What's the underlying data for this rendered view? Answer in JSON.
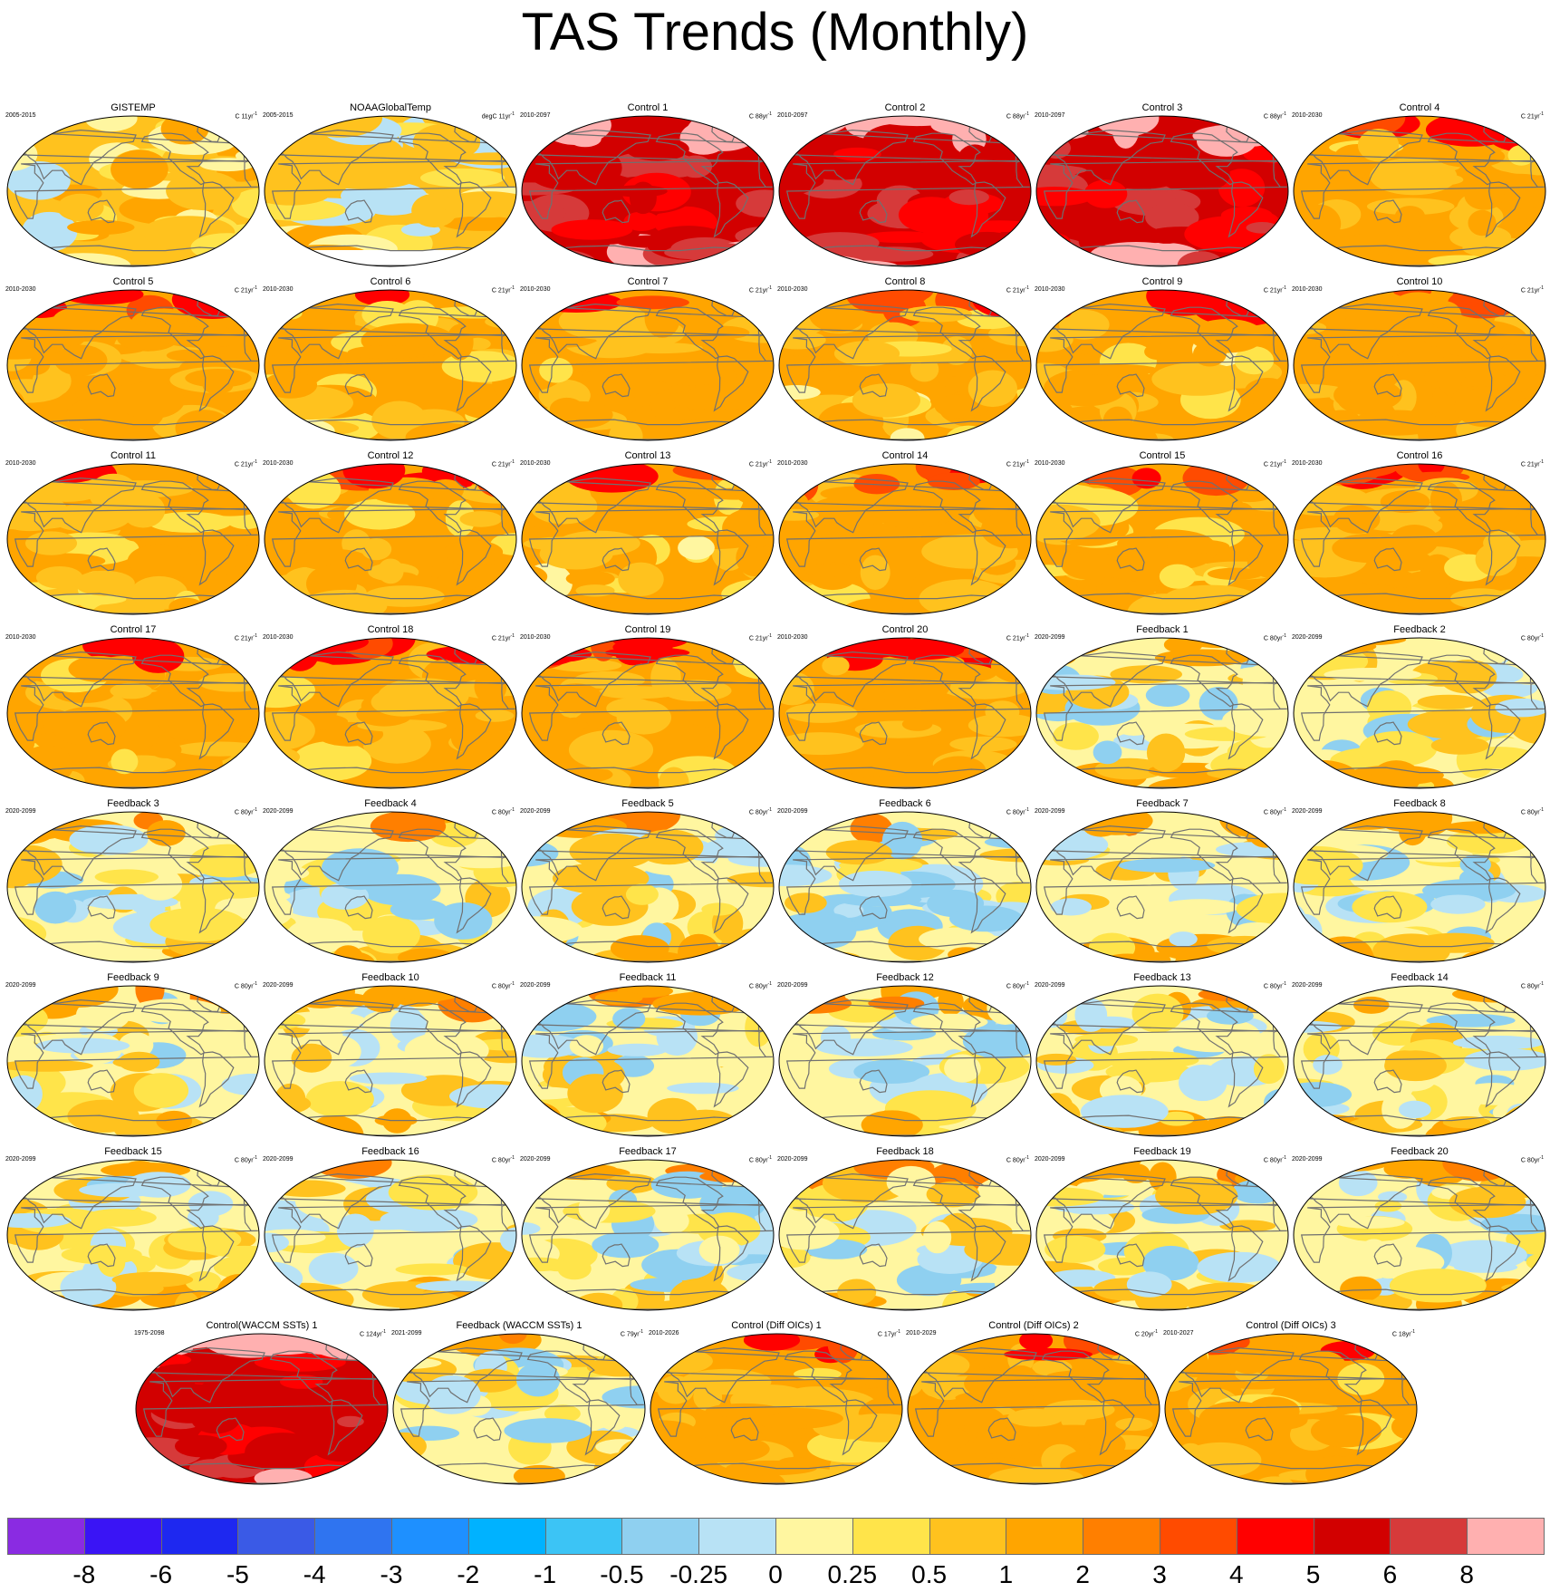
{
  "chart_data": {
    "type": "heatmap",
    "title": "TAS Trends (Monthly)",
    "projection": "Robinson global maps with coastlines",
    "panels": [
      {
        "title": "GISTEMP",
        "period": "2005-2015",
        "units_label": "C 11yr",
        "units_sup": "-1",
        "mean_level": 0.6,
        "pattern": "mixed"
      },
      {
        "title": "NOAAGlobalTemp",
        "period": "2005-2015",
        "units_label": "degC 11yr",
        "units_sup": "-1",
        "mean_level": 0.5,
        "pattern": "obs_missing"
      },
      {
        "title": "Control 1",
        "period": "2010-2097",
        "units_label": "C 88yr",
        "units_sup": "-1",
        "mean_level": 5.5,
        "pattern": "hot"
      },
      {
        "title": "Control 2",
        "period": "2010-2097",
        "units_label": "C 88yr",
        "units_sup": "-1",
        "mean_level": 5.5,
        "pattern": "hot"
      },
      {
        "title": "Control 3",
        "period": "2010-2097",
        "units_label": "C 88yr",
        "units_sup": "-1",
        "mean_level": 5.5,
        "pattern": "hot"
      },
      {
        "title": "Control 4",
        "period": "2010-2030",
        "units_label": "C 21yr",
        "units_sup": "-1",
        "mean_level": 1.2,
        "pattern": "warm"
      },
      {
        "title": "Control 5",
        "period": "2010-2030",
        "units_label": "C 21yr",
        "units_sup": "-1",
        "mean_level": 1.3,
        "pattern": "warm"
      },
      {
        "title": "Control 6",
        "period": "2010-2030",
        "units_label": "C 21yr",
        "units_sup": "-1",
        "mean_level": 1.0,
        "pattern": "warm"
      },
      {
        "title": "Control 7",
        "period": "2010-2030",
        "units_label": "C 21yr",
        "units_sup": "-1",
        "mean_level": 1.2,
        "pattern": "warm"
      },
      {
        "title": "Control 8",
        "period": "2010-2030",
        "units_label": "C 21yr",
        "units_sup": "-1",
        "mean_level": 1.0,
        "pattern": "warm"
      },
      {
        "title": "Control 9",
        "period": "2010-2030",
        "units_label": "C 21yr",
        "units_sup": "-1",
        "mean_level": 1.0,
        "pattern": "warm"
      },
      {
        "title": "Control 10",
        "period": "2010-2030",
        "units_label": "C 21yr",
        "units_sup": "-1",
        "mean_level": 1.3,
        "pattern": "warm"
      },
      {
        "title": "Control 11",
        "period": "2010-2030",
        "units_label": "C 21yr",
        "units_sup": "-1",
        "mean_level": 1.1,
        "pattern": "warm"
      },
      {
        "title": "Control 12",
        "period": "2010-2030",
        "units_label": "C 21yr",
        "units_sup": "-1",
        "mean_level": 1.2,
        "pattern": "warm"
      },
      {
        "title": "Control 13",
        "period": "2010-2030",
        "units_label": "C 21yr",
        "units_sup": "-1",
        "mean_level": 1.0,
        "pattern": "warm"
      },
      {
        "title": "Control 14",
        "period": "2010-2030",
        "units_label": "C 21yr",
        "units_sup": "-1",
        "mean_level": 1.3,
        "pattern": "warm"
      },
      {
        "title": "Control 15",
        "period": "2010-2030",
        "units_label": "C 21yr",
        "units_sup": "-1",
        "mean_level": 1.1,
        "pattern": "warm"
      },
      {
        "title": "Control 16",
        "period": "2010-2030",
        "units_label": "C 21yr",
        "units_sup": "-1",
        "mean_level": 1.2,
        "pattern": "warm"
      },
      {
        "title": "Control 17",
        "period": "2010-2030",
        "units_label": "C 21yr",
        "units_sup": "-1",
        "mean_level": 1.2,
        "pattern": "warm"
      },
      {
        "title": "Control 18",
        "period": "2010-2030",
        "units_label": "C 21yr",
        "units_sup": "-1",
        "mean_level": 1.3,
        "pattern": "warm"
      },
      {
        "title": "Control 19",
        "period": "2010-2030",
        "units_label": "C 21yr",
        "units_sup": "-1",
        "mean_level": 1.2,
        "pattern": "warm"
      },
      {
        "title": "Control 20",
        "period": "2010-2030",
        "units_label": "C 21yr",
        "units_sup": "-1",
        "mean_level": 1.3,
        "pattern": "warm"
      },
      {
        "title": "Feedback 1",
        "period": "2020-2099",
        "units_label": "C 80yr",
        "units_sup": "-1",
        "mean_level": 0.1,
        "pattern": "cool"
      },
      {
        "title": "Feedback 2",
        "period": "2020-2099",
        "units_label": "C 80yr",
        "units_sup": "-1",
        "mean_level": 0.1,
        "pattern": "cool"
      },
      {
        "title": "Feedback 3",
        "period": "2020-2099",
        "units_label": "C 80yr",
        "units_sup": "-1",
        "mean_level": 0.1,
        "pattern": "cool"
      },
      {
        "title": "Feedback 4",
        "period": "2020-2099",
        "units_label": "C 80yr",
        "units_sup": "-1",
        "mean_level": 0.1,
        "pattern": "cool"
      },
      {
        "title": "Feedback 5",
        "period": "2020-2099",
        "units_label": "C 80yr",
        "units_sup": "-1",
        "mean_level": 0.2,
        "pattern": "cool"
      },
      {
        "title": "Feedback 6",
        "period": "2020-2099",
        "units_label": "C 80yr",
        "units_sup": "-1",
        "mean_level": 0.1,
        "pattern": "cool"
      },
      {
        "title": "Feedback 7",
        "period": "2020-2099",
        "units_label": "C 80yr",
        "units_sup": "-1",
        "mean_level": 0.2,
        "pattern": "cool"
      },
      {
        "title": "Feedback 8",
        "period": "2020-2099",
        "units_label": "C 80yr",
        "units_sup": "-1",
        "mean_level": 0.1,
        "pattern": "cool"
      },
      {
        "title": "Feedback 9",
        "period": "2020-2099",
        "units_label": "C 80yr",
        "units_sup": "-1",
        "mean_level": 0.2,
        "pattern": "cool"
      },
      {
        "title": "Feedback 10",
        "period": "2020-2099",
        "units_label": "C 80yr",
        "units_sup": "-1",
        "mean_level": 0.2,
        "pattern": "cool"
      },
      {
        "title": "Feedback 11",
        "period": "2020-2099",
        "units_label": "C 80yr",
        "units_sup": "-1",
        "mean_level": 0.2,
        "pattern": "cool"
      },
      {
        "title": "Feedback 12",
        "period": "2020-2099",
        "units_label": "C 80yr",
        "units_sup": "-1",
        "mean_level": 0.1,
        "pattern": "cool"
      },
      {
        "title": "Feedback 13",
        "period": "2020-2099",
        "units_label": "C 80yr",
        "units_sup": "-1",
        "mean_level": 0.2,
        "pattern": "cool"
      },
      {
        "title": "Feedback 14",
        "period": "2020-2099",
        "units_label": "C 80yr",
        "units_sup": "-1",
        "mean_level": 0.1,
        "pattern": "cool"
      },
      {
        "title": "Feedback 15",
        "period": "2020-2099",
        "units_label": "C 80yr",
        "units_sup": "-1",
        "mean_level": 0.2,
        "pattern": "cool"
      },
      {
        "title": "Feedback 16",
        "period": "2020-2099",
        "units_label": "C 80yr",
        "units_sup": "-1",
        "mean_level": 0.2,
        "pattern": "cool"
      },
      {
        "title": "Feedback 17",
        "period": "2020-2099",
        "units_label": "C 80yr",
        "units_sup": "-1",
        "mean_level": 0.1,
        "pattern": "cool"
      },
      {
        "title": "Feedback 18",
        "period": "2020-2099",
        "units_label": "C 80yr",
        "units_sup": "-1",
        "mean_level": 0.1,
        "pattern": "cool"
      },
      {
        "title": "Feedback 19",
        "period": "2020-2099",
        "units_label": "C 80yr",
        "units_sup": "-1",
        "mean_level": 0.2,
        "pattern": "cool"
      },
      {
        "title": "Feedback 20",
        "period": "2020-2099",
        "units_label": "C 80yr",
        "units_sup": "-1",
        "mean_level": 0.2,
        "pattern": "cool"
      },
      {
        "title": "Control(WACCM SSTs) 1",
        "period": "1975-2098",
        "units_label": "C 124yr",
        "units_sup": "-1",
        "mean_level": 5.5,
        "pattern": "hot"
      },
      {
        "title": "Feedback (WACCM SSTs) 1",
        "period": "2021-2099",
        "units_label": "C 79yr",
        "units_sup": "-1",
        "mean_level": 0.2,
        "pattern": "cool"
      },
      {
        "title": "Control (Diff OICs) 1",
        "period": "2010-2026",
        "units_label": "C 17yr",
        "units_sup": "-1",
        "mean_level": 1.1,
        "pattern": "warm"
      },
      {
        "title": "Control (Diff OICs) 2",
        "period": "2010-2029",
        "units_label": "C 20yr",
        "units_sup": "-1",
        "mean_level": 1.3,
        "pattern": "warm"
      },
      {
        "title": "Control (Diff OICs) 3",
        "period": "2010-2027",
        "units_label": "C 18yr",
        "units_sup": "-1",
        "mean_level": 1.1,
        "pattern": "warm"
      }
    ],
    "colorbar": {
      "labels": [
        "-8",
        "-6",
        "-5",
        "-4",
        "-3",
        "-2",
        "-1",
        "-0.5",
        "-0.25",
        "0",
        "0.25",
        "0.5",
        "1",
        "2",
        "3",
        "4",
        "5",
        "6",
        "8"
      ],
      "levels": [
        -8,
        -6,
        -5,
        -4,
        -3,
        -2,
        -1,
        -0.5,
        -0.25,
        0,
        0.25,
        0.5,
        1,
        2,
        3,
        4,
        5,
        6,
        8
      ],
      "colors": [
        "#8a2be2",
        "#3a14f5",
        "#1e28f0",
        "#3a5ae6",
        "#2f74f0",
        "#1e90ff",
        "#00b2ff",
        "#3cc4f5",
        "#8fd0f0",
        "#b8e2f5",
        "#fff6a0",
        "#ffe44a",
        "#ffc21e",
        "#ffa500",
        "#ff7f00",
        "#ff4b00",
        "#ff0000",
        "#d20000",
        "#d63a3a",
        "#ffb0b0"
      ]
    },
    "coast_color": "#707070",
    "missing_color": "#ffffff"
  }
}
